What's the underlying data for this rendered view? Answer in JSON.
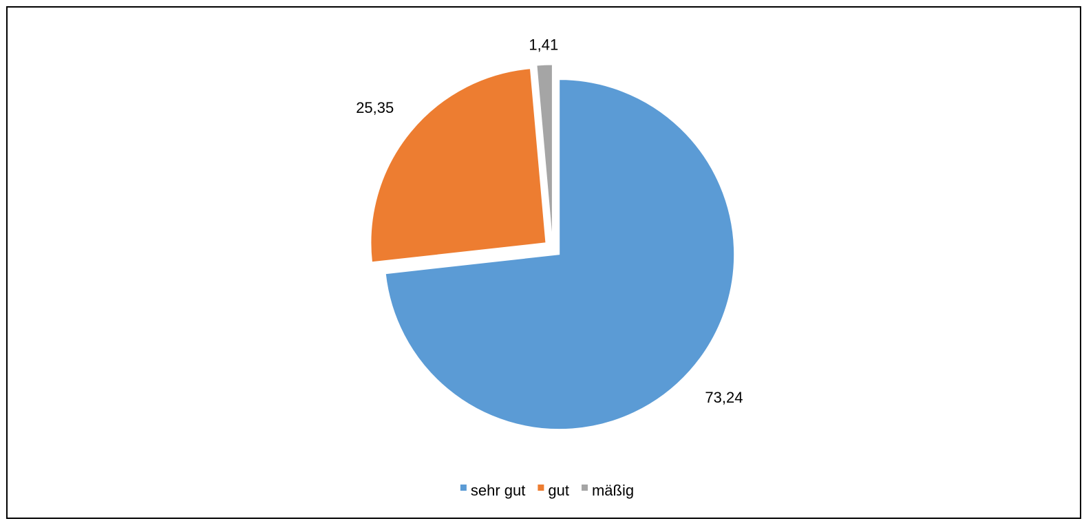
{
  "chart_data": {
    "type": "pie",
    "categories": [
      "sehr gut",
      "gut",
      "mäßig"
    ],
    "values": [
      73.24,
      25.35,
      1.41
    ],
    "data_labels": [
      "73,24",
      "25,35",
      "1,41"
    ],
    "colors": [
      "#5B9BD5",
      "#ED7D31",
      "#A5A5A5"
    ],
    "start_angle": "12 o'clock, clockwise",
    "exploded": true,
    "legend": {
      "position": "bottom",
      "entries": [
        "sehr gut",
        "gut",
        "mäßig"
      ]
    },
    "title": ""
  }
}
